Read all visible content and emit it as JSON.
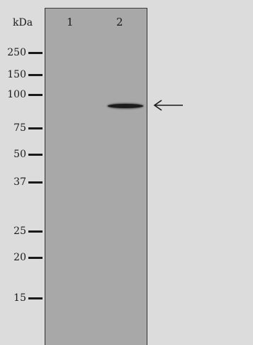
{
  "axis": {
    "unit_label": "kDa"
  },
  "lanes": [
    {
      "label": "1"
    },
    {
      "label": "2"
    }
  ],
  "markers": [
    {
      "label": "250"
    },
    {
      "label": "150"
    },
    {
      "label": "100"
    },
    {
      "label": "75"
    },
    {
      "label": "50"
    },
    {
      "label": "37"
    },
    {
      "label": "25"
    },
    {
      "label": "20"
    },
    {
      "label": "15"
    }
  ],
  "band": {
    "lane": "2",
    "color": "#1c1c1c"
  },
  "colors": {
    "background": "#dcdcdc",
    "membrane": "#a8a8a8",
    "ink": "#1a1a1a"
  },
  "icons": {
    "band_pointer": "left-arrow-icon"
  }
}
